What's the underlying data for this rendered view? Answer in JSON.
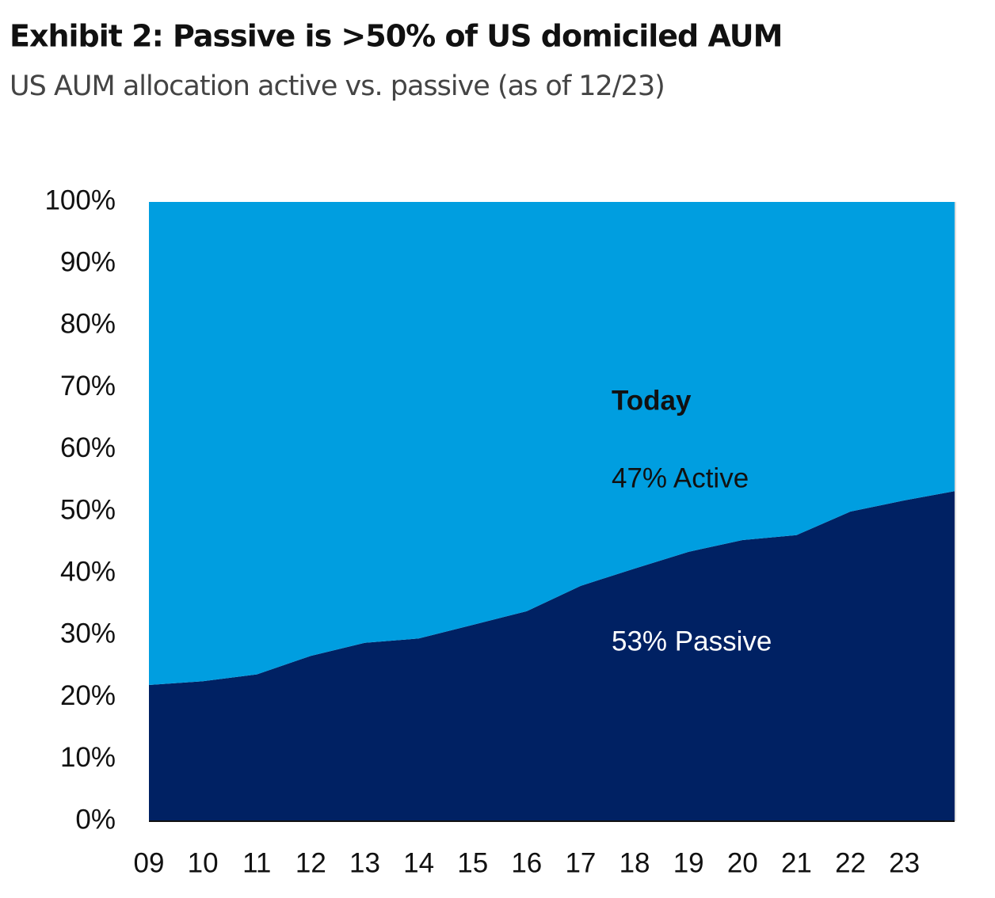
{
  "chart_data": {
    "type": "stacked-area",
    "title": "Exhibit 2: Passive is >50% of US domiciled AUM",
    "subtitle": "US AUM allocation active vs. passive (as of 12/23)",
    "x": [
      9,
      10,
      11,
      12,
      13,
      14,
      15,
      16,
      17,
      18,
      19,
      20,
      21,
      22,
      23,
      23.93
    ],
    "series": [
      {
        "name": "Passive",
        "color": "#002163",
        "values": [
          22,
          22.6,
          23.7,
          26.7,
          28.8,
          29.5,
          31.7,
          33.9,
          38,
          40.8,
          43.5,
          45.4,
          46.2,
          50,
          51.8,
          53.3
        ]
      },
      {
        "name": "Active",
        "color": "#009ee0",
        "values": [
          78,
          77.4,
          76.3,
          73.3,
          71.2,
          70.5,
          68.3,
          66.1,
          62,
          59.2,
          56.5,
          54.6,
          53.8,
          50,
          48.2,
          46.7
        ]
      }
    ],
    "xlim": [
      9,
      23.93
    ],
    "xticks": [
      {
        "value": 9,
        "label": "09"
      },
      10,
      11,
      12,
      13,
      14,
      15,
      16,
      17,
      18,
      19,
      20,
      21,
      22,
      23
    ],
    "ylim": [
      0,
      100
    ],
    "yticks": [
      {
        "value": 0,
        "label": "0%"
      },
      {
        "value": 10,
        "label": "10%"
      },
      {
        "value": 20,
        "label": "20%"
      },
      {
        "value": 30,
        "label": "30%"
      },
      {
        "value": 40,
        "label": "40%"
      },
      {
        "value": 50,
        "label": "50%"
      },
      {
        "value": 60,
        "label": "60%"
      },
      {
        "value": 70,
        "label": "70%"
      },
      {
        "value": 80,
        "label": "80%"
      },
      {
        "value": 90,
        "label": "90%"
      },
      {
        "value": 100,
        "label": "100%"
      }
    ],
    "annotations": [
      "Today",
      "47% Active",
      "53% Passive"
    ]
  }
}
